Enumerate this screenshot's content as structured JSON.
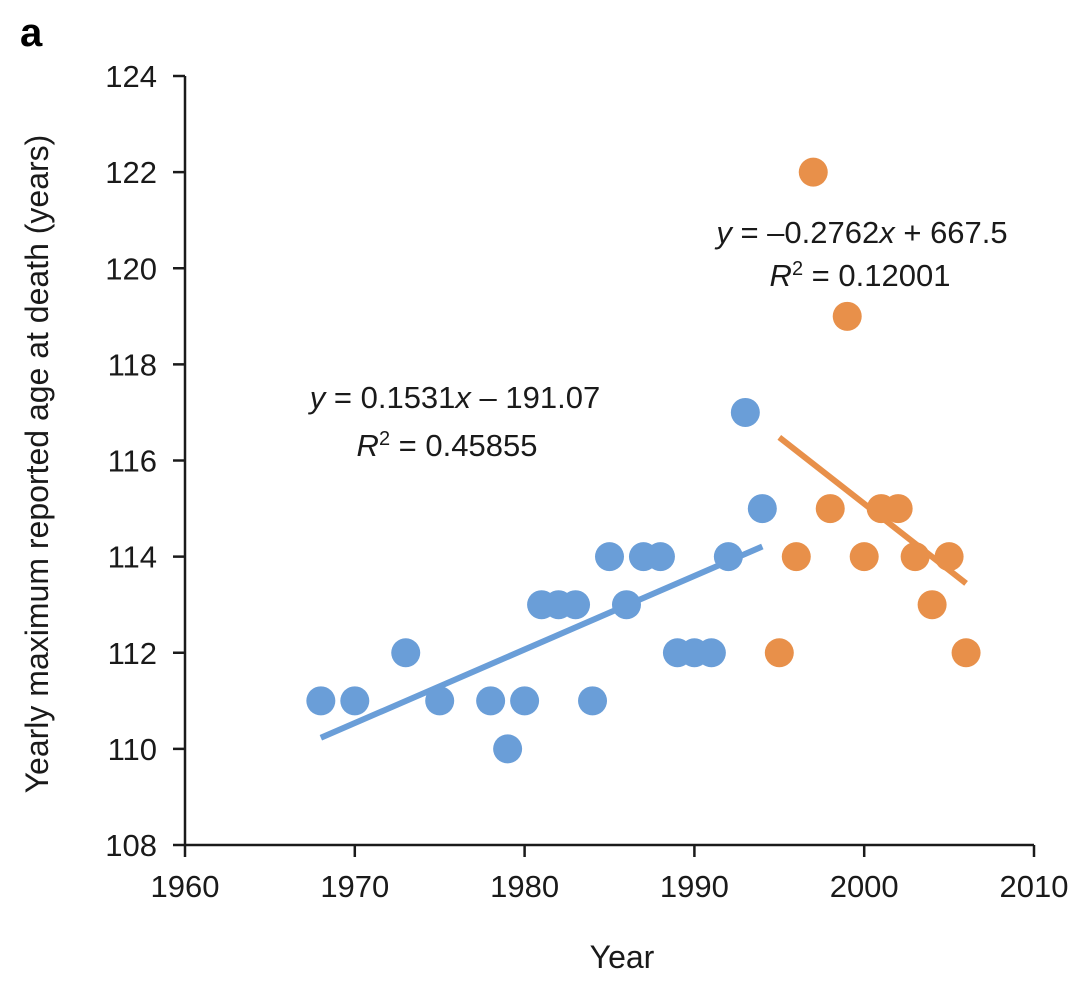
{
  "panel_label": "a",
  "chart_data": {
    "type": "scatter",
    "xlabel": "Year",
    "ylabel": "Yearly maximum reported age at death (years)",
    "xlim": [
      1960,
      2010
    ],
    "ylim": [
      108,
      124
    ],
    "xticks": [
      1960,
      1970,
      1980,
      1990,
      2000,
      2010
    ],
    "yticks": [
      108,
      110,
      112,
      114,
      116,
      118,
      120,
      122,
      124
    ],
    "grid": false,
    "series": [
      {
        "color": "#6a9ed8",
        "points": [
          [
            1968,
            111
          ],
          [
            1970,
            111
          ],
          [
            1973,
            112
          ],
          [
            1975,
            111
          ],
          [
            1978,
            111
          ],
          [
            1979,
            110
          ],
          [
            1980,
            111
          ],
          [
            1981,
            113
          ],
          [
            1982,
            113
          ],
          [
            1983,
            113
          ],
          [
            1984,
            111
          ],
          [
            1985,
            114
          ],
          [
            1986,
            113
          ],
          [
            1987,
            114
          ],
          [
            1988,
            114
          ],
          [
            1989,
            112
          ],
          [
            1990,
            112
          ],
          [
            1991,
            112
          ],
          [
            1992,
            114
          ],
          [
            1993,
            117
          ],
          [
            1994,
            115
          ]
        ],
        "trendline": {
          "slope": 0.1531,
          "intercept": -191.07,
          "x_range": [
            1968,
            1994
          ]
        },
        "equation_text": {
          "y": "y",
          "eq": " = 0.1531",
          "x": "x",
          "rest": " – 191.07"
        },
        "r2_text": {
          "r": "R",
          "sup": "2",
          "rest": " = 0.45855"
        }
      },
      {
        "color": "#e8904a",
        "points": [
          [
            1995,
            112
          ],
          [
            1996,
            114
          ],
          [
            1997,
            122
          ],
          [
            1998,
            115
          ],
          [
            1999,
            119
          ],
          [
            2000,
            114
          ],
          [
            2001,
            115
          ],
          [
            2002,
            115
          ],
          [
            2003,
            114
          ],
          [
            2004,
            113
          ],
          [
            2005,
            114
          ],
          [
            2006,
            112
          ]
        ],
        "trendline": {
          "slope": -0.2762,
          "intercept": 667.5,
          "x_range": [
            1995,
            2006
          ]
        },
        "equation_text": {
          "y": "y",
          "eq": " = –0.2762",
          "x": "x",
          "rest": " + 667.5"
        },
        "r2_text": {
          "r": "R",
          "sup": "2",
          "rest": " = 0.12001"
        }
      }
    ]
  }
}
